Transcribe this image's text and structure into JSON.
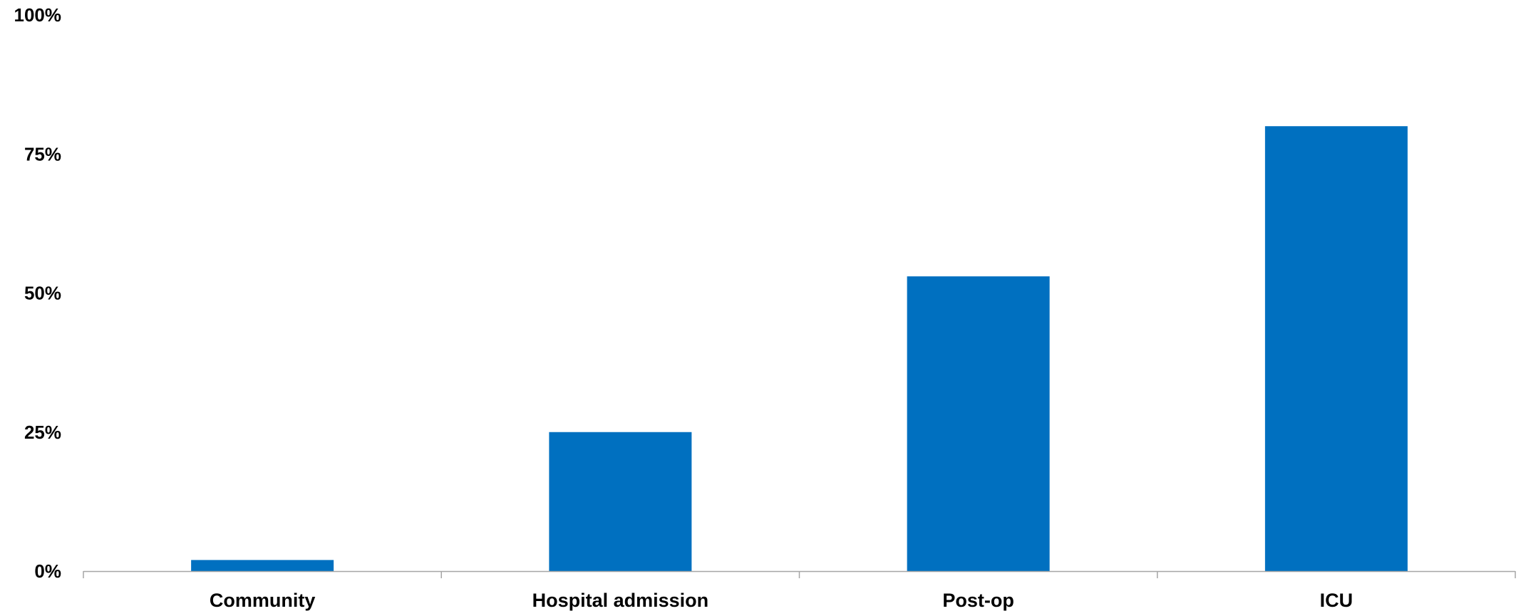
{
  "chart_data": {
    "type": "bar",
    "title": "",
    "xlabel": "",
    "ylabel": "",
    "categories": [
      "Community",
      "Hospital admission",
      "Post-op",
      "ICU"
    ],
    "values": [
      2,
      25,
      53,
      80
    ],
    "ylim": [
      0,
      100
    ],
    "y_ticks": [
      {
        "value": 0,
        "label": "0%"
      },
      {
        "value": 25,
        "label": "25%"
      },
      {
        "value": 50,
        "label": "50%"
      },
      {
        "value": 75,
        "label": "75%"
      },
      {
        "value": 100,
        "label": "100%"
      }
    ],
    "grid": false,
    "legend": "none",
    "colors": {
      "bar": "#0070C0",
      "axis": "#A6A6A6",
      "text": "#000000"
    }
  }
}
